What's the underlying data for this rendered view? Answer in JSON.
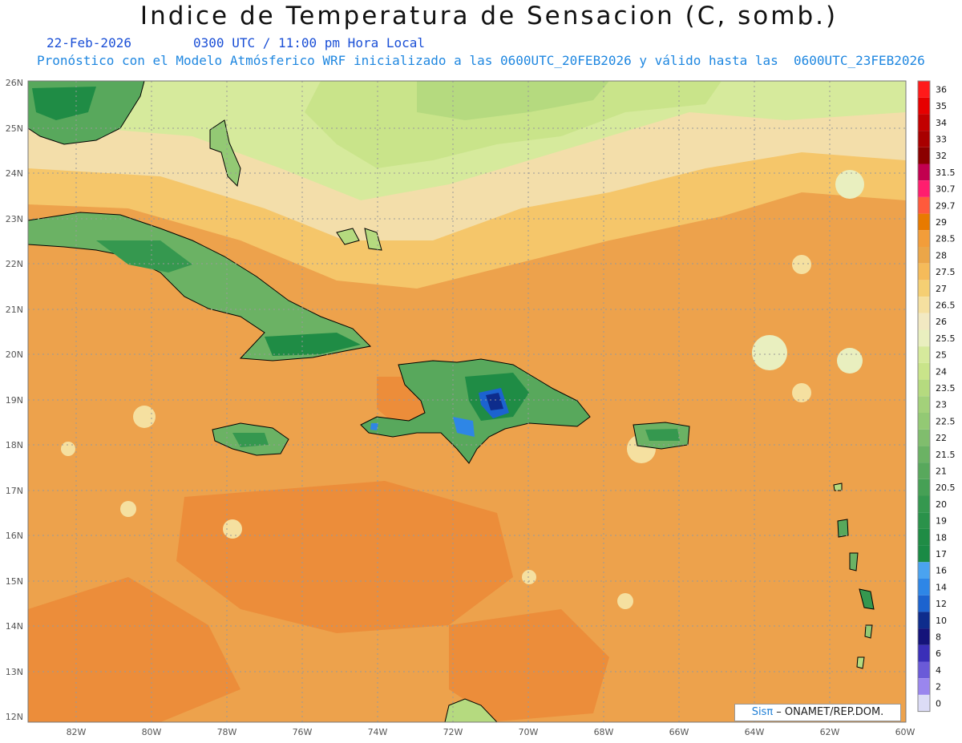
{
  "header": {
    "title": "Indice de Temperatura de Sensacion (C, somb.)",
    "date_line": "22-Feb-2026        0300 UTC / 11:00 pm Hora Local",
    "valid_line": "Pronóstico con el Modelo Atmósferico WRF inicializado a las 0600UTC_20FEB2026 y válido hasta las  0600UTC_23FEB2026"
  },
  "axes": {
    "lon_labels": [
      "82W",
      "80W",
      "78W",
      "76W",
      "74W",
      "72W",
      "70W",
      "68W",
      "66W",
      "64W",
      "62W",
      "60W"
    ],
    "lat_labels": [
      "26N",
      "25N",
      "24N",
      "23N",
      "22N",
      "21N",
      "20N",
      "19N",
      "18N",
      "17N",
      "16N",
      "15N",
      "14N",
      "13N",
      "12N"
    ]
  },
  "colorbar": {
    "labels": [
      "36",
      "35",
      "34",
      "33",
      "32",
      "31.5",
      "30.7",
      "29.7",
      "29",
      "28.5",
      "28",
      "27.5",
      "27",
      "26.5",
      "26",
      "25.5",
      "25",
      "24",
      "23.5",
      "23",
      "22.5",
      "22",
      "21.5",
      "21",
      "20.5",
      "20",
      "19",
      "18",
      "17",
      "16",
      "14",
      "12",
      "10",
      "8",
      "6",
      "4",
      "2",
      "0"
    ],
    "colors": [
      "#ff1a1a",
      "#e60000",
      "#c20000",
      "#a80000",
      "#8b0000",
      "#c2004f",
      "#ff1e6e",
      "#ff5a3c",
      "#e87a00",
      "#f29d3a",
      "#eba648",
      "#f5bb5a",
      "#f5cf73",
      "#f5e0a0",
      "#f2e9c2",
      "#e9efbf",
      "#d6ea9c",
      "#c9e48a",
      "#b5da7f",
      "#a3d17a",
      "#93c974",
      "#80bd6d",
      "#6bb264",
      "#58a85c",
      "#46a055",
      "#35984f",
      "#2a924a",
      "#1f8c45",
      "#1a8a45",
      "#4aa3f0",
      "#2e86e6",
      "#1c63cf",
      "#0e2c8c",
      "#14137a",
      "#3a2fb8",
      "#6a5ad8",
      "#9a86ee",
      "#dcdcf6"
    ]
  },
  "credit": {
    "symbol": "Sisπ",
    "text": " – ONAMET/REP.DOM."
  }
}
